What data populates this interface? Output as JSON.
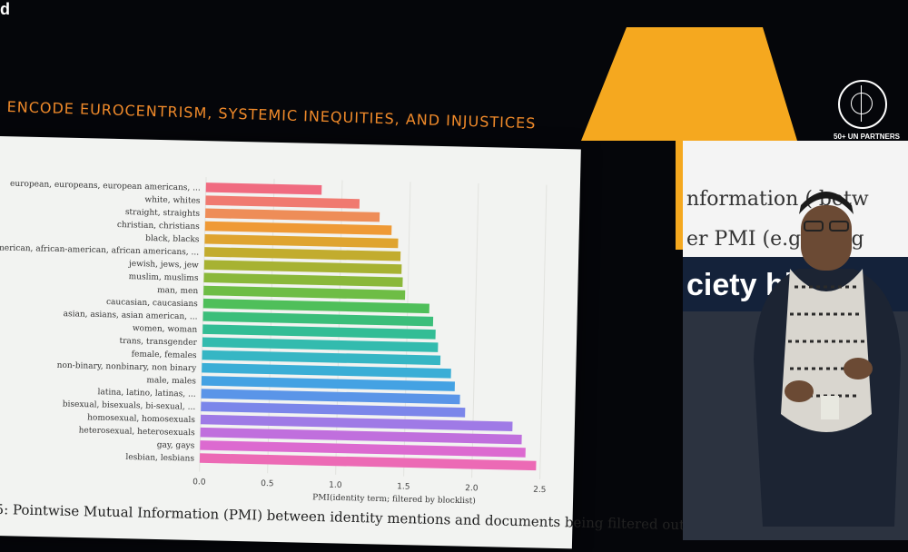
{
  "corner_text": "d",
  "slide": {
    "title": "ENCODE EUROCENTRISM, SYSTEMIC INEQUITIES, AND INJUSTICES",
    "caption": "5: Pointwise Mutual Information (PMI) between identity mentions and documents being filtered out by the"
  },
  "logo": {
    "text": "50+ UN PARTNERS"
  },
  "right_screen": {
    "line1": "nformation (    betw",
    "line2": "er PMI (e.g    ian, g",
    "band_text": "ciety    his"
  },
  "chart_data": {
    "type": "bar",
    "orientation": "horizontal",
    "xlabel": "PMI(identity term; filtered by blocklist)",
    "xlim": [
      0,
      2.6
    ],
    "xticks": [
      0.0,
      0.5,
      1.0,
      1.5,
      2.0,
      2.5
    ],
    "xtick_labels": [
      "0.0",
      "0.5",
      "1.0",
      "1.5",
      "2.0",
      "2.5"
    ],
    "grid": true,
    "categories": [
      "european, europeans, european americans, ...",
      "white, whites",
      "straight, straights",
      "christian, christians",
      "black, blacks",
      "n american, african-american, african americans, ...",
      "jewish, jews, jew",
      "muslim, muslims",
      "man, men",
      "caucasian, caucasians",
      "asian, asians, asian american, ...",
      "women, woman",
      "trans, transgender",
      "female, females",
      "non-binary, nonbinary, non binary",
      "male, males",
      "latina, latino, latinas, ...",
      "bisexual, bisexuals, bi-sexual, ...",
      "homosexual, homosexuals",
      "heterosexual, heterosexuals",
      "gay, gays",
      "lesbian, lesbians"
    ],
    "values": [
      0.85,
      1.13,
      1.28,
      1.37,
      1.42,
      1.44,
      1.45,
      1.46,
      1.48,
      1.66,
      1.69,
      1.71,
      1.73,
      1.75,
      1.83,
      1.86,
      1.9,
      1.94,
      2.29,
      2.36,
      2.39,
      2.47
    ],
    "colors": [
      "#f06b80",
      "#f07a70",
      "#ee8d58",
      "#ef9a36",
      "#dfa430",
      "#c2ac2e",
      "#a7b232",
      "#8ab83a",
      "#6ebd45",
      "#4fbf5a",
      "#3bbe7a",
      "#33bd95",
      "#33bbae",
      "#36b6c4",
      "#3aaed6",
      "#44a2e3",
      "#5a95e8",
      "#7b86ea",
      "#9f7ae6",
      "#c06fdd",
      "#dc6ad0",
      "#ec6ab5"
    ]
  }
}
